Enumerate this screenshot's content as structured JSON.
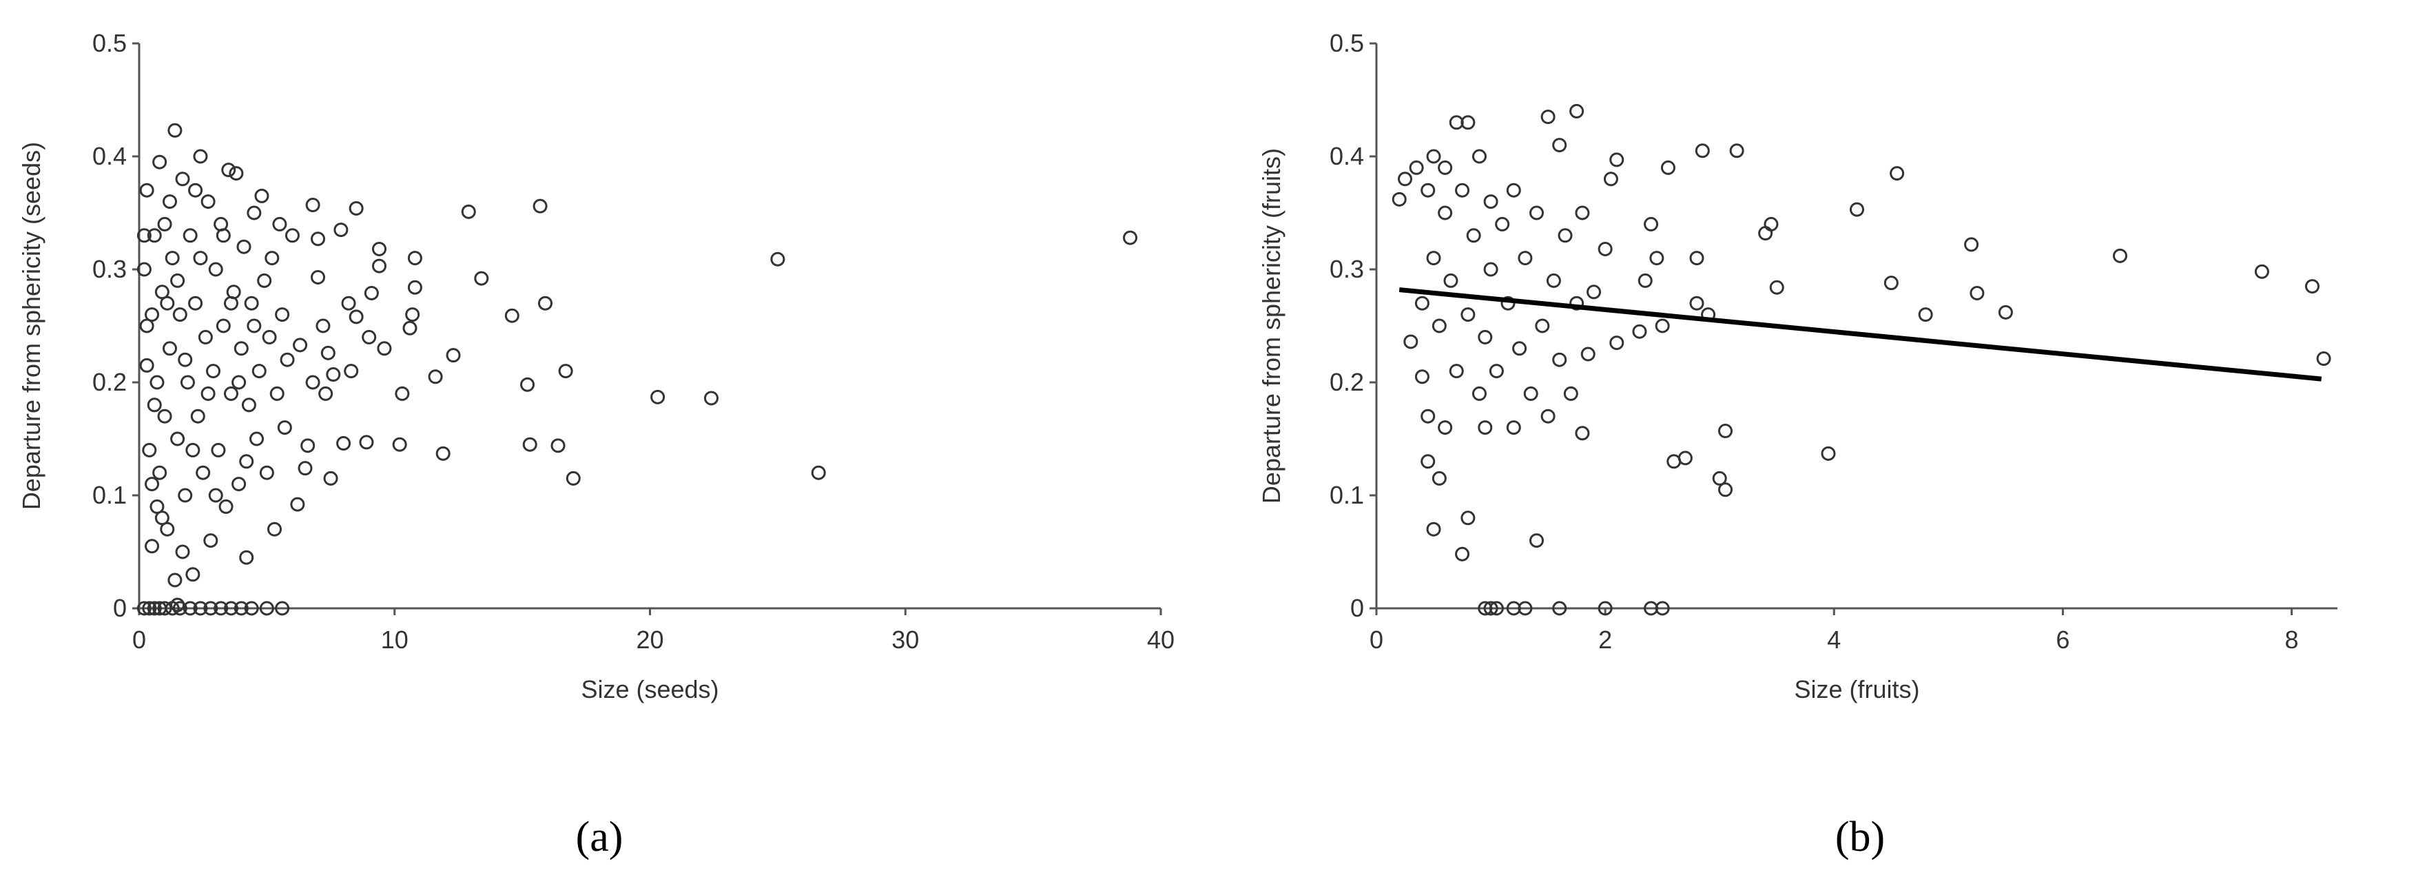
{
  "chart_data": [
    {
      "type": "scatter",
      "panel_label": "(a)",
      "x_label": "Size (seeds)",
      "y_label": "Departure from sphericity (seeds)",
      "xlim": [
        0,
        40
      ],
      "xticks": [
        0,
        10,
        20,
        30,
        40
      ],
      "ylim": [
        0,
        0.5
      ],
      "yticks": [
        0,
        0.1,
        0.2,
        0.3,
        0.4,
        0.5
      ],
      "color": "#333333",
      "x": [
        0.2,
        0.4,
        0.6,
        0.8,
        1.0,
        1.3,
        1.6,
        2.0,
        2.4,
        2.8,
        3.2,
        3.6,
        4.0,
        4.4,
        5.0,
        5.6,
        1.5,
        0.3,
        0.2,
        0.3,
        0.4,
        0.5,
        0.5,
        0.6,
        0.7,
        0.7,
        0.8,
        0.8,
        0.9,
        1.0,
        1.0,
        1.1,
        1.2,
        1.3,
        1.4,
        1.4,
        1.5,
        1.6,
        1.7,
        1.8,
        1.9,
        2.0,
        2.1,
        2.2,
        2.3,
        2.4,
        2.5,
        2.6,
        2.7,
        2.8,
        2.9,
        3.0,
        3.1,
        3.2,
        3.3,
        3.4,
        3.5,
        3.6,
        3.7,
        3.8,
        3.9,
        4.0,
        4.1,
        4.2,
        4.3,
        4.4,
        4.5,
        4.6,
        4.7,
        4.8,
        4.9,
        5.0,
        5.1,
        5.2,
        5.3,
        5.4,
        5.5,
        5.6,
        5.7,
        5.8,
        0.3,
        0.6,
        0.9,
        1.2,
        1.5,
        1.8,
        2.1,
        2.4,
        2.7,
        3.0,
        3.3,
        3.6,
        3.9,
        4.2,
        4.5,
        0.2,
        0.5,
        1.1,
        1.7,
        2.2,
        6.0,
        6.2,
        6.3,
        6.5,
        6.6,
        6.8,
        6.8,
        7.0,
        7.0,
        7.2,
        7.3,
        7.4,
        7.5,
        7.6,
        7.9,
        8.0,
        8.2,
        8.3,
        8.5,
        8.5,
        8.9,
        9.1,
        9.0,
        9.4,
        9.4,
        9.6,
        10.2,
        10.3,
        10.6,
        10.7,
        10.8,
        10.8,
        11.6,
        11.9,
        12.3,
        12.9,
        13.4,
        14.6,
        15.2,
        15.3,
        15.7,
        15.9,
        16.4,
        16.7,
        17.0,
        20.3,
        22.4,
        25.0,
        26.6,
        38.8
      ],
      "values": [
        0,
        0,
        0,
        0,
        0,
        0,
        0,
        0,
        0,
        0,
        0,
        0,
        0,
        0,
        0,
        0,
        0.003,
        0.215,
        0.3,
        0.37,
        0.14,
        0.055,
        0.26,
        0.33,
        0.09,
        0.2,
        0.395,
        0.12,
        0.28,
        0.17,
        0.34,
        0.07,
        0.23,
        0.31,
        0.423,
        0.025,
        0.15,
        0.26,
        0.38,
        0.1,
        0.2,
        0.33,
        0.03,
        0.27,
        0.17,
        0.4,
        0.12,
        0.24,
        0.36,
        0.06,
        0.21,
        0.3,
        0.14,
        0.34,
        0.25,
        0.09,
        0.388,
        0.19,
        0.28,
        0.385,
        0.11,
        0.23,
        0.32,
        0.045,
        0.18,
        0.27,
        0.35,
        0.15,
        0.21,
        0.365,
        0.29,
        0.12,
        0.24,
        0.31,
        0.07,
        0.19,
        0.34,
        0.26,
        0.16,
        0.22,
        0.25,
        0.18,
        0.08,
        0.36,
        0.29,
        0.22,
        0.14,
        0.31,
        0.19,
        0.1,
        0.33,
        0.27,
        0.2,
        0.13,
        0.25,
        0.33,
        0.11,
        0.27,
        0.05,
        0.37,
        0.33,
        0.092,
        0.233,
        0.124,
        0.144,
        0.2,
        0.357,
        0.293,
        0.327,
        0.25,
        0.19,
        0.226,
        0.115,
        0.207,
        0.335,
        0.146,
        0.27,
        0.21,
        0.258,
        0.354,
        0.147,
        0.279,
        0.24,
        0.303,
        0.318,
        0.23,
        0.145,
        0.19,
        0.248,
        0.26,
        0.284,
        0.31,
        0.205,
        0.137,
        0.224,
        0.351,
        0.292,
        0.259,
        0.198,
        0.145,
        0.356,
        0.27,
        0.144,
        0.21,
        0.115,
        0.187,
        0.186,
        0.309,
        0.12,
        0.328
      ]
    },
    {
      "type": "scatter",
      "panel_label": "(b)",
      "x_label": "Size (fruits)",
      "y_label": "Departure from sphericity (fruits)",
      "xlim": [
        0,
        8.4
      ],
      "xticks": [
        0,
        2,
        4,
        6,
        8
      ],
      "ylim": [
        0,
        0.5
      ],
      "yticks": [
        0,
        0.1,
        0.2,
        0.3,
        0.4,
        0.5
      ],
      "color": "#333333",
      "x": [
        0.95,
        1.0,
        1.05,
        1.2,
        1.3,
        1.6,
        2.0,
        2.4,
        2.5,
        0.2,
        0.25,
        0.3,
        0.35,
        0.4,
        0.4,
        0.45,
        0.45,
        0.45,
        0.5,
        0.5,
        0.5,
        0.55,
        0.55,
        0.6,
        0.6,
        0.65,
        0.7,
        0.7,
        0.75,
        0.75,
        0.8,
        0.8,
        0.8,
        0.85,
        0.9,
        0.9,
        0.95,
        0.95,
        1.0,
        1.0,
        1.05,
        1.1,
        1.15,
        1.2,
        1.2,
        1.25,
        1.3,
        1.35,
        1.4,
        1.4,
        1.45,
        1.5,
        1.5,
        1.55,
        1.6,
        1.6,
        1.65,
        1.7,
        1.75,
        1.75,
        1.8,
        1.8,
        1.85,
        1.9,
        2.0,
        2.05,
        2.1,
        2.1,
        2.3,
        2.35,
        2.4,
        2.45,
        2.5,
        2.55,
        2.6,
        2.7,
        2.8,
        2.8,
        2.85,
        2.9,
        3.0,
        3.05,
        3.05,
        3.15,
        3.4,
        3.45,
        3.5,
        3.95,
        4.2,
        4.5,
        4.55,
        4.8,
        5.2,
        5.25,
        5.5,
        6.5,
        7.74,
        8.18,
        8.28,
        0.6
      ],
      "values": [
        0,
        0,
        0,
        0,
        0,
        0,
        0,
        0,
        0,
        0.362,
        0.38,
        0.236,
        0.39,
        0.27,
        0.205,
        0.17,
        0.13,
        0.37,
        0.07,
        0.31,
        0.4,
        0.115,
        0.25,
        0.35,
        0.16,
        0.29,
        0.43,
        0.21,
        0.37,
        0.048,
        0.43,
        0.08,
        0.26,
        0.33,
        0.19,
        0.4,
        0.24,
        0.16,
        0.3,
        0.36,
        0.21,
        0.34,
        0.27,
        0.16,
        0.37,
        0.23,
        0.31,
        0.19,
        0.06,
        0.35,
        0.25,
        0.435,
        0.17,
        0.29,
        0.41,
        0.22,
        0.33,
        0.19,
        0.44,
        0.27,
        0.35,
        0.155,
        0.225,
        0.28,
        0.318,
        0.38,
        0.235,
        0.397,
        0.245,
        0.29,
        0.34,
        0.31,
        0.25,
        0.39,
        0.13,
        0.133,
        0.31,
        0.27,
        0.405,
        0.26,
        0.115,
        0.105,
        0.157,
        0.405,
        0.332,
        0.34,
        0.284,
        0.137,
        0.353,
        0.288,
        0.385,
        0.26,
        0.322,
        0.279,
        0.262,
        0.312,
        0.298,
        0.285,
        0.221,
        0.39
      ],
      "trendline": {
        "x": [
          0.2,
          8.26
        ],
        "values": [
          0.282,
          0.203
        ],
        "color": "#000000"
      }
    }
  ]
}
